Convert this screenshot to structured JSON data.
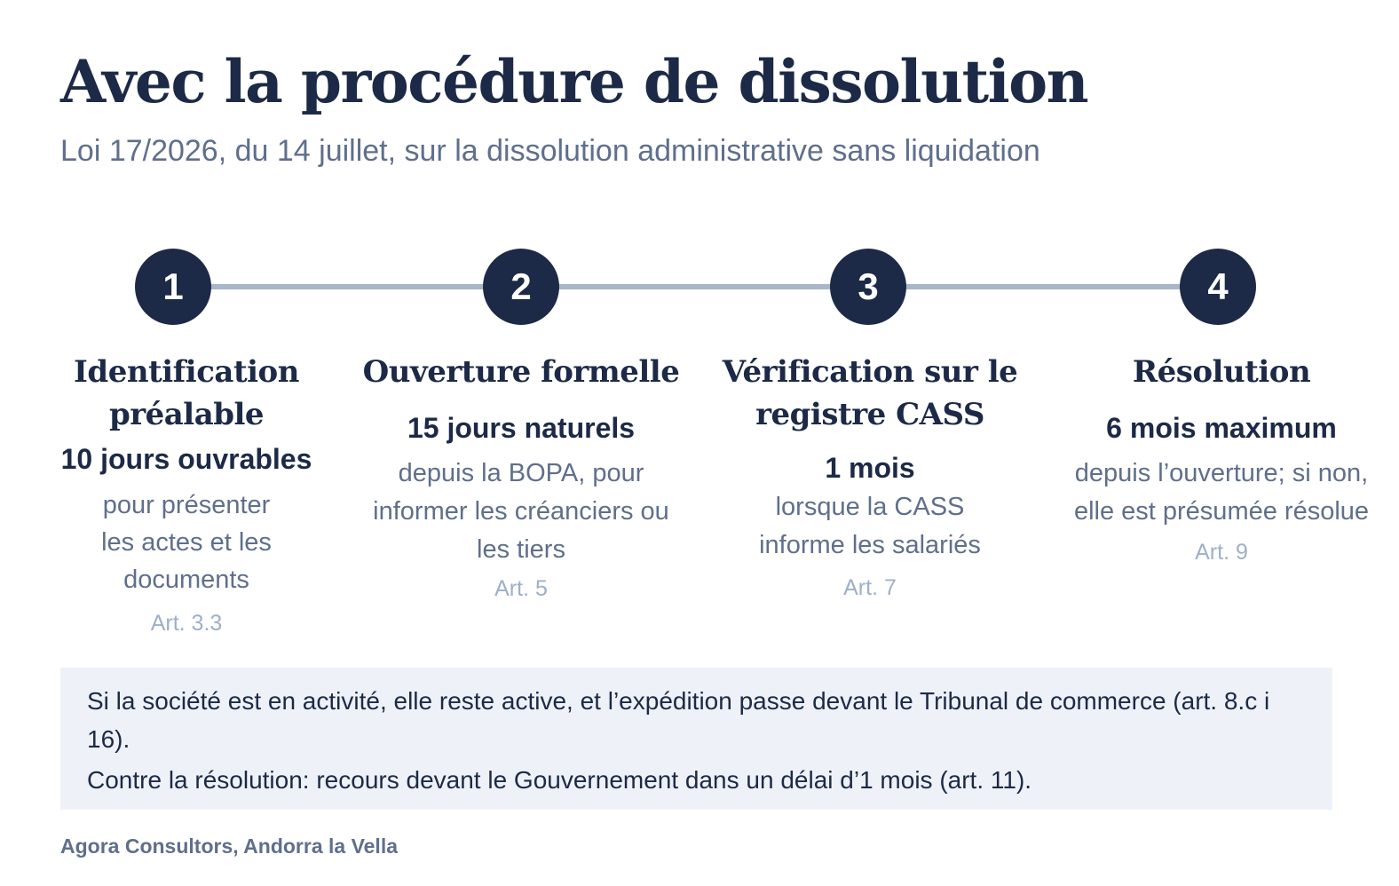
{
  "title": "Avec la procédure de dissolution",
  "subtitle": "Loi 17/2026, du 14 juillet, sur la dissolution administrative sans liquidation",
  "steps": [
    {
      "number": "1",
      "title": "Identification préalable",
      "duration": "10 jours ouvrables",
      "description": "pour présenter les actes et les documents",
      "article": "Art. 3.3"
    },
    {
      "number": "2",
      "title": "Ouverture formelle",
      "duration": "15 jours naturels",
      "description": "depuis la BOPA, pour informer les créanciers ou les tiers",
      "article": "Art. 5"
    },
    {
      "number": "3",
      "title": "Vérification sur le registre CASS",
      "duration": "1 mois",
      "description": "lorsque la CASS informe les salariés",
      "article": "Art. 7"
    },
    {
      "number": "4",
      "title": "Résolution",
      "duration": "6 mois maximum",
      "description": "depuis l’ouverture; si non, elle est présumée résolue",
      "article": "Art. 9"
    }
  ],
  "notes": [
    "Si la société est en activité, elle reste active, et l’expédition passe devant le Tribunal de commerce (art. 8.c i 16).",
    "Contre la résolution: recours devant le Gouvernement dans un délai d’1 mois (art. 11)."
  ],
  "footer": "Agora Consultors, Andorra la Vella",
  "colors": {
    "navy": "#1c2a47",
    "muted_text": "#5f6f8c",
    "article_text": "#9db0c9",
    "timeline": "#a8b6ca",
    "note_bg": "#eef2f8"
  }
}
